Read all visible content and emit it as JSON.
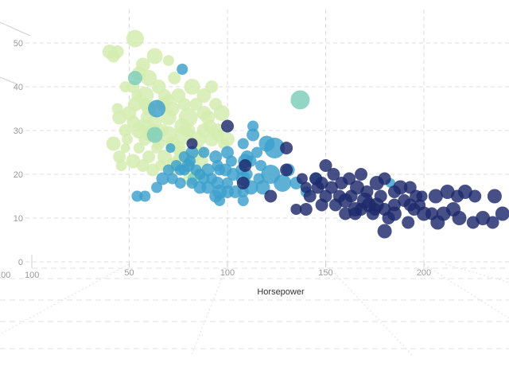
{
  "chart_data": {
    "type": "scatter",
    "xlabel": "Horsepower",
    "ylabel": "",
    "xlim": [
      40,
      242
    ],
    "ylim": [
      0,
      55
    ],
    "x_ticks": [
      50,
      100,
      150,
      200
    ],
    "y_ticks": [
      0,
      10,
      20,
      30,
      40,
      50
    ],
    "origin_labels": [
      "100",
      "100"
    ],
    "grid": true,
    "colors": [
      "#d5ecb0",
      "#7ccdb9",
      "#3ba0cc",
      "#2a5fa3",
      "#1d2a6b"
    ],
    "series": [
      {
        "color": "#d5ecb0",
        "points": [
          [
            53,
            51,
            11
          ],
          [
            40,
            48,
            9
          ],
          [
            44,
            48,
            8
          ],
          [
            42,
            47,
            8
          ],
          [
            57,
            45,
            9
          ],
          [
            63,
            47,
            10
          ],
          [
            70,
            46,
            7
          ],
          [
            55,
            43,
            9
          ],
          [
            60,
            42,
            10
          ],
          [
            52,
            40,
            8
          ],
          [
            58,
            38,
            11
          ],
          [
            65,
            40,
            9
          ],
          [
            68,
            38,
            8
          ],
          [
            75,
            38,
            9
          ],
          [
            82,
            40,
            10
          ],
          [
            88,
            38,
            9
          ],
          [
            94,
            36,
            8
          ],
          [
            97,
            34,
            10
          ],
          [
            90,
            33,
            9
          ],
          [
            80,
            33,
            12
          ],
          [
            70,
            33,
            10
          ],
          [
            60,
            35,
            9
          ],
          [
            50,
            34,
            9
          ],
          [
            45,
            33,
            9
          ],
          [
            48,
            30,
            8
          ],
          [
            55,
            30,
            10
          ],
          [
            62,
            30,
            9
          ],
          [
            70,
            29,
            11
          ],
          [
            78,
            29,
            12
          ],
          [
            85,
            28,
            10
          ],
          [
            92,
            28,
            9
          ],
          [
            75,
            26,
            9
          ],
          [
            65,
            27,
            8
          ],
          [
            55,
            26,
            7
          ],
          [
            48,
            26,
            6
          ],
          [
            42,
            27,
            9
          ],
          [
            45,
            24,
            8
          ],
          [
            52,
            23,
            9
          ],
          [
            60,
            24,
            8
          ],
          [
            68,
            24,
            9
          ],
          [
            73,
            22,
            10
          ],
          [
            80,
            22,
            9
          ],
          [
            85,
            20,
            8
          ],
          [
            67,
            30,
            8
          ],
          [
            88,
            30,
            9
          ],
          [
            95,
            30,
            9
          ],
          [
            100,
            28,
            9
          ],
          [
            72,
            35,
            9
          ],
          [
            84,
            36,
            8
          ],
          [
            63,
            32,
            9
          ],
          [
            58,
            36,
            8
          ],
          [
            44,
            35,
            7
          ],
          [
            53,
            36,
            9
          ],
          [
            77,
            31,
            10
          ],
          [
            58,
            28,
            8
          ],
          [
            86,
            25,
            9
          ],
          [
            92,
            40,
            8
          ],
          [
            48,
            40,
            7
          ],
          [
            98,
            27,
            7
          ],
          [
            73,
            42,
            8
          ],
          [
            75,
            23,
            9
          ],
          [
            81,
            19,
            9
          ],
          [
            62,
            21,
            8
          ],
          [
            54,
            38,
            7
          ],
          [
            67,
            36,
            9
          ],
          [
            78,
            36,
            8
          ],
          [
            88,
            34,
            9
          ],
          [
            59,
            33,
            8
          ],
          [
            72,
            27,
            9
          ],
          [
            83,
            24,
            8
          ],
          [
            49,
            28,
            7
          ],
          [
            64,
            26,
            7
          ],
          [
            80,
            30,
            9
          ],
          [
            91,
            31,
            8
          ],
          [
            70,
            37,
            7
          ],
          [
            57,
            31,
            9
          ],
          [
            76,
            25,
            8
          ],
          [
            66,
            22,
            7
          ],
          [
            87,
            23,
            8
          ],
          [
            95,
            29,
            8
          ],
          [
            61,
            29,
            9
          ],
          [
            52,
            32,
            8
          ],
          [
            46,
            22,
            7
          ],
          [
            57,
            22,
            8
          ]
        ]
      },
      {
        "color": "#7ccdb9",
        "points": [
          [
            53,
            42,
            9
          ],
          [
            63,
            29,
            10
          ],
          [
            83,
            19,
            8
          ],
          [
            137,
            37,
            12
          ]
        ]
      },
      {
        "color": "#3ba0cc",
        "points": [
          [
            77,
            44,
            7
          ],
          [
            64,
            35,
            11
          ],
          [
            71,
            26,
            6
          ],
          [
            78,
            24,
            7
          ],
          [
            82,
            25,
            8
          ],
          [
            88,
            25,
            7
          ],
          [
            94,
            24,
            8
          ],
          [
            100,
            25,
            8
          ],
          [
            102,
            23,
            7
          ],
          [
            110,
            24,
            8
          ],
          [
            115,
            25,
            7
          ],
          [
            120,
            27,
            10
          ],
          [
            124,
            26,
            13
          ],
          [
            113,
            29,
            8
          ],
          [
            108,
            27,
            7
          ],
          [
            109,
            23,
            9
          ],
          [
            112,
            23,
            7
          ],
          [
            117,
            22,
            7
          ],
          [
            122,
            20,
            12
          ],
          [
            128,
            18,
            11
          ],
          [
            118,
            17,
            9
          ],
          [
            112,
            17,
            9
          ],
          [
            108,
            16,
            7
          ],
          [
            104,
            16,
            8
          ],
          [
            100,
            16,
            8
          ],
          [
            96,
            16,
            9
          ],
          [
            90,
            17,
            8
          ],
          [
            86,
            17,
            8
          ],
          [
            82,
            18,
            7
          ],
          [
            76,
            18,
            7
          ],
          [
            72,
            19,
            7
          ],
          [
            67,
            19,
            8
          ],
          [
            64,
            17,
            7
          ],
          [
            54,
            15,
            7
          ],
          [
            58,
            15,
            7
          ],
          [
            78,
            21,
            7
          ],
          [
            84,
            21,
            7
          ],
          [
            90,
            21,
            8
          ],
          [
            95,
            22,
            7
          ],
          [
            99,
            21,
            8
          ],
          [
            103,
            20,
            8
          ],
          [
            108,
            19,
            9
          ],
          [
            95,
            18,
            8
          ],
          [
            88,
            19,
            7
          ],
          [
            80,
            22,
            8
          ],
          [
            74,
            22,
            7
          ],
          [
            94,
            15,
            8
          ],
          [
            100,
            18,
            7
          ],
          [
            86,
            20,
            7
          ],
          [
            81,
            23,
            7
          ],
          [
            76,
            21,
            7
          ],
          [
            70,
            21,
            7
          ],
          [
            92,
            19,
            7
          ],
          [
            96,
            21,
            7
          ],
          [
            107,
            21,
            7
          ],
          [
            110,
            20,
            7
          ],
          [
            113,
            31,
            7
          ],
          [
            108,
            14,
            7
          ],
          [
            96,
            14,
            7
          ],
          [
            140,
            16,
            7
          ],
          [
            145,
            19,
            8
          ],
          [
            135,
            18,
            8
          ],
          [
            183,
            18,
            6
          ],
          [
            131,
            21,
            8
          ],
          [
            116,
            19,
            7
          ]
        ]
      },
      {
        "color": "#1d2a6b",
        "points": [
          [
            100,
            31,
            8
          ],
          [
            82,
            27,
            7
          ],
          [
            109,
            22,
            8
          ],
          [
            108,
            18,
            8
          ],
          [
            130,
            26,
            8
          ],
          [
            130,
            21,
            8
          ],
          [
            122,
            15,
            8
          ],
          [
            138,
            19,
            7
          ],
          [
            140,
            17,
            7
          ],
          [
            145,
            19,
            8
          ],
          [
            150,
            22,
            8
          ],
          [
            154,
            20,
            8
          ],
          [
            158,
            18,
            8
          ],
          [
            162,
            19,
            8
          ],
          [
            166,
            17,
            9
          ],
          [
            168,
            20,
            8
          ],
          [
            176,
            18,
            9
          ],
          [
            180,
            19,
            8
          ],
          [
            188,
            17,
            9
          ],
          [
            193,
            17,
            8
          ],
          [
            196,
            15,
            8
          ],
          [
            206,
            15,
            9
          ],
          [
            212,
            16,
            9
          ],
          [
            217,
            15,
            8
          ],
          [
            221,
            16,
            9
          ],
          [
            226,
            15,
            8
          ],
          [
            236,
            15,
            9
          ],
          [
            150,
            15,
            8
          ],
          [
            155,
            13,
            8
          ],
          [
            160,
            14,
            9
          ],
          [
            165,
            12,
            9
          ],
          [
            170,
            14,
            10
          ],
          [
            172,
            13,
            9
          ],
          [
            176,
            13,
            9
          ],
          [
            180,
            12,
            8
          ],
          [
            185,
            13,
            8
          ],
          [
            190,
            14,
            8
          ],
          [
            195,
            12,
            8
          ],
          [
            200,
            11,
            9
          ],
          [
            204,
            11,
            8
          ],
          [
            210,
            11,
            9
          ],
          [
            215,
            12,
            9
          ],
          [
            207,
            9,
            9
          ],
          [
            218,
            10,
            9
          ],
          [
            225,
            9,
            8
          ],
          [
            230,
            10,
            9
          ],
          [
            235,
            9,
            8
          ],
          [
            240,
            11,
            9
          ],
          [
            185,
            11,
            9
          ],
          [
            174,
            11,
            8
          ],
          [
            165,
            11,
            8
          ],
          [
            160,
            11,
            8
          ],
          [
            148,
            13,
            8
          ],
          [
            140,
            12,
            8
          ],
          [
            135,
            12,
            7
          ],
          [
            180,
            7,
            9
          ],
          [
            163,
            15,
            8
          ],
          [
            157,
            15,
            8
          ],
          [
            153,
            17,
            8
          ],
          [
            146,
            17,
            8
          ],
          [
            171,
            16,
            8
          ],
          [
            178,
            15,
            8
          ],
          [
            185,
            16,
            8
          ],
          [
            193,
            13,
            8
          ],
          [
            199,
            15,
            7
          ],
          [
            168,
            12,
            8
          ],
          [
            175,
            12,
            8
          ],
          [
            182,
            10,
            8
          ],
          [
            192,
            9,
            8
          ],
          [
            198,
            13,
            7
          ],
          [
            148,
            18,
            8
          ],
          [
            142,
            15,
            8
          ]
        ]
      }
    ]
  }
}
